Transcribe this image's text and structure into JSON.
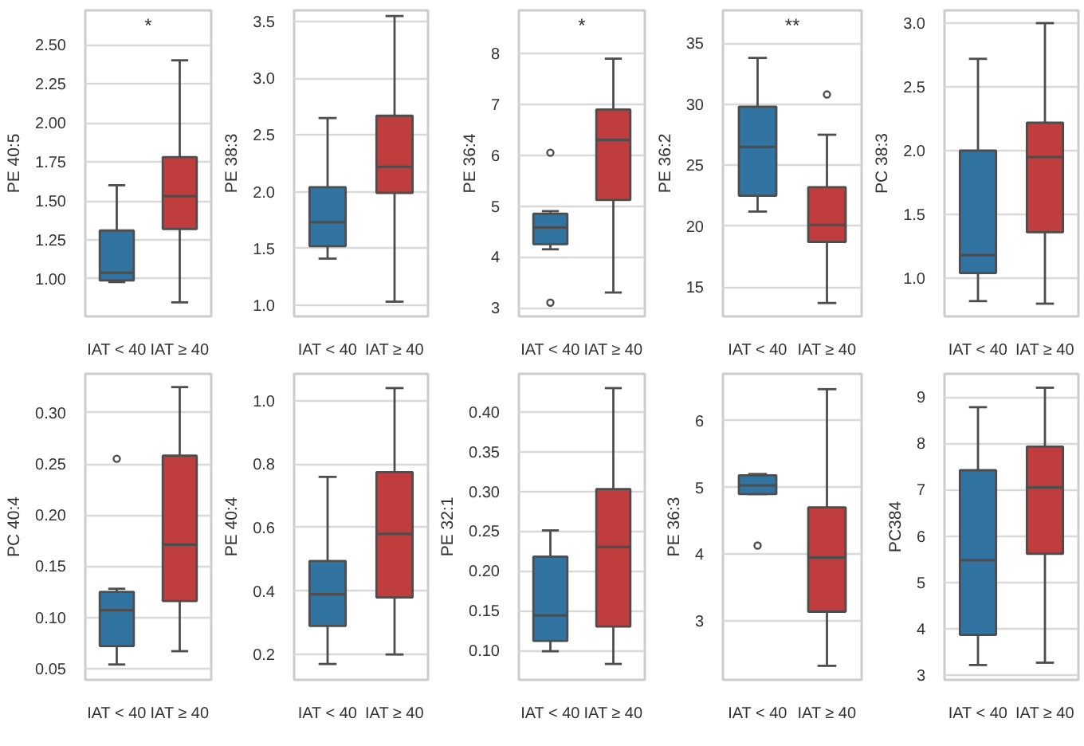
{
  "chart_data": [
    {
      "type": "box",
      "ylabel": "PE 40:5",
      "categories": [
        "IAT < 40",
        "IAT ≥ 40"
      ],
      "colors": [
        "#3274a1",
        "#c03d3e"
      ],
      "ylim": [
        0.76,
        2.72
      ],
      "yticks": [
        {
          "value": 1.0,
          "label": "1.00"
        },
        1.25,
        {
          "value": 1.5,
          "label": "1.50"
        },
        1.75,
        {
          "value": 2.0,
          "label": "2.00"
        },
        2.25,
        {
          "value": 2.5,
          "label": "2.50"
        }
      ],
      "grid": "y",
      "annotations": [
        "*"
      ],
      "boxes": [
        {
          "low": 0.98,
          "q1": 0.99,
          "median": 1.04,
          "q3": 1.31,
          "high": 1.6
        },
        {
          "low": 0.85,
          "q1": 1.32,
          "median": 1.53,
          "q3": 1.78,
          "high": 2.4
        }
      ]
    },
    {
      "type": "box",
      "ylabel": "PE 38:3",
      "categories": [
        "IAT < 40",
        "IAT ≥ 40"
      ],
      "colors": [
        "#3274a1",
        "#c03d3e"
      ],
      "ylim": [
        0.9,
        3.6
      ],
      "yticks": [
        {
          "value": 1.0,
          "label": "1.0"
        },
        1.5,
        {
          "value": 2.0,
          "label": "2.0"
        },
        2.5,
        {
          "value": 3.0,
          "label": "3.0"
        },
        3.5
      ],
      "grid": "y",
      "boxes": [
        {
          "low": 1.41,
          "q1": 1.52,
          "median": 1.73,
          "q3": 2.04,
          "high": 2.65
        },
        {
          "low": 1.03,
          "q1": 1.99,
          "median": 2.22,
          "q3": 2.67,
          "high": 3.55
        }
      ]
    },
    {
      "type": "box",
      "ylabel": "PE 36:4",
      "categories": [
        "IAT < 40",
        "IAT ≥ 40"
      ],
      "colors": [
        "#3274a1",
        "#c03d3e"
      ],
      "ylim": [
        2.83,
        8.85
      ],
      "yticks": [
        3,
        4,
        5,
        6,
        7,
        8
      ],
      "grid": "y",
      "annotations": [
        "*"
      ],
      "boxes": [
        {
          "low": 4.15,
          "q1": 4.25,
          "median": 4.58,
          "q3": 4.85,
          "high": 4.9,
          "outliers": [
            6.05,
            3.1
          ]
        },
        {
          "low": 3.3,
          "q1": 5.12,
          "median": 6.3,
          "q3": 6.9,
          "high": 7.9
        }
      ]
    },
    {
      "type": "box",
      "ylabel": "PE 36:2",
      "categories": [
        "IAT < 40",
        "IAT ≥ 40"
      ],
      "colors": [
        "#3274a1",
        "#c03d3e"
      ],
      "ylim": [
        12.6,
        37.7
      ],
      "yticks": [
        15,
        20,
        25,
        30,
        35
      ],
      "grid": "y",
      "annotations": [
        "**"
      ],
      "boxes": [
        {
          "low": 21.2,
          "q1": 22.5,
          "median": 26.5,
          "q3": 29.8,
          "high": 33.8
        },
        {
          "low": 13.7,
          "q1": 18.7,
          "median": 20.1,
          "q3": 23.2,
          "high": 27.5,
          "outliers": [
            30.8
          ]
        }
      ]
    },
    {
      "type": "box",
      "ylabel": "PC 38:3",
      "categories": [
        "IAT < 40",
        "IAT ≥ 40"
      ],
      "colors": [
        "#3274a1",
        "#c03d3e"
      ],
      "ylim": [
        0.7,
        3.1
      ],
      "yticks": [
        {
          "value": 1.0,
          "label": "1.0"
        },
        1.5,
        {
          "value": 2.0,
          "label": "2.0"
        },
        2.5,
        {
          "value": 3.0,
          "label": "3.0"
        }
      ],
      "grid": "y",
      "boxes": [
        {
          "low": 0.82,
          "q1": 1.04,
          "median": 1.18,
          "q3": 2.0,
          "high": 2.72
        },
        {
          "low": 0.8,
          "q1": 1.36,
          "median": 1.95,
          "q3": 2.22,
          "high": 3.0
        }
      ]
    },
    {
      "type": "box",
      "ylabel": "PC 40:4",
      "categories": [
        "IAT < 40",
        "IAT ≥ 40"
      ],
      "colors": [
        "#3274a1",
        "#c03d3e"
      ],
      "ylim": [
        0.039,
        0.338
      ],
      "yticks": [
        0.05,
        {
          "value": 0.1,
          "label": "0.10"
        },
        0.15,
        {
          "value": 0.2,
          "label": "0.20"
        },
        0.25,
        {
          "value": 0.3,
          "label": "0.30"
        }
      ],
      "grid": "y",
      "boxes": [
        {
          "low": 0.054,
          "q1": 0.072,
          "median": 0.107,
          "q3": 0.125,
          "high": 0.128,
          "outliers": [
            0.255
          ]
        },
        {
          "low": 0.067,
          "q1": 0.116,
          "median": 0.171,
          "q3": 0.258,
          "high": 0.325
        }
      ]
    },
    {
      "type": "box",
      "ylabel": "PE 40:4",
      "categories": [
        "IAT < 40",
        "IAT ≥ 40"
      ],
      "colors": [
        "#3274a1",
        "#c03d3e"
      ],
      "ylim": [
        0.12,
        1.085
      ],
      "yticks": [
        0.2,
        0.4,
        0.6,
        0.8,
        {
          "value": 1.0,
          "label": "1.0"
        }
      ],
      "grid": "y",
      "boxes": [
        {
          "low": 0.17,
          "q1": 0.29,
          "median": 0.39,
          "q3": 0.495,
          "high": 0.76
        },
        {
          "low": 0.2,
          "q1": 0.38,
          "median": 0.58,
          "q3": 0.775,
          "high": 1.04
        }
      ]
    },
    {
      "type": "box",
      "ylabel": "PE 32:1",
      "categories": [
        "IAT < 40",
        "IAT ≥ 40"
      ],
      "colors": [
        "#3274a1",
        "#c03d3e"
      ],
      "ylim": [
        0.063,
        0.448
      ],
      "yticks": [
        {
          "value": 0.1,
          "label": "0.10"
        },
        0.15,
        {
          "value": 0.2,
          "label": "0.20"
        },
        0.25,
        {
          "value": 0.3,
          "label": "0.30"
        },
        0.35,
        {
          "value": 0.4,
          "label": "0.40"
        }
      ],
      "grid": "y",
      "boxes": [
        {
          "low": 0.099,
          "q1": 0.112,
          "median": 0.144,
          "q3": 0.218,
          "high": 0.251
        },
        {
          "low": 0.083,
          "q1": 0.13,
          "median": 0.23,
          "q3": 0.303,
          "high": 0.43
        }
      ]
    },
    {
      "type": "box",
      "ylabel": "PE 36:3",
      "categories": [
        "IAT < 40",
        "IAT ≥ 40"
      ],
      "colors": [
        "#3274a1",
        "#c03d3e"
      ],
      "ylim": [
        2.12,
        6.7
      ],
      "yticks": [
        3,
        4,
        5,
        6
      ],
      "grid": "y",
      "boxes": [
        {
          "low": 4.9,
          "q1": 4.9,
          "median": 5.03,
          "q3": 5.18,
          "high": 5.2,
          "outliers": [
            4.13
          ]
        },
        {
          "low": 2.33,
          "q1": 3.14,
          "median": 3.95,
          "q3": 4.7,
          "high": 6.47
        }
      ]
    },
    {
      "type": "box",
      "ylabel": "PC384",
      "categories": [
        "IAT < 40",
        "IAT ≥ 40"
      ],
      "colors": [
        "#3274a1",
        "#c03d3e"
      ],
      "ylim": [
        2.9,
        9.5
      ],
      "yticks": [
        3,
        4,
        5,
        6,
        7,
        8,
        9
      ],
      "grid": "y",
      "boxes": [
        {
          "low": 3.22,
          "q1": 3.87,
          "median": 5.48,
          "q3": 7.42,
          "high": 8.78
        },
        {
          "low": 3.27,
          "q1": 5.62,
          "median": 7.05,
          "q3": 7.93,
          "high": 9.2
        }
      ]
    }
  ]
}
